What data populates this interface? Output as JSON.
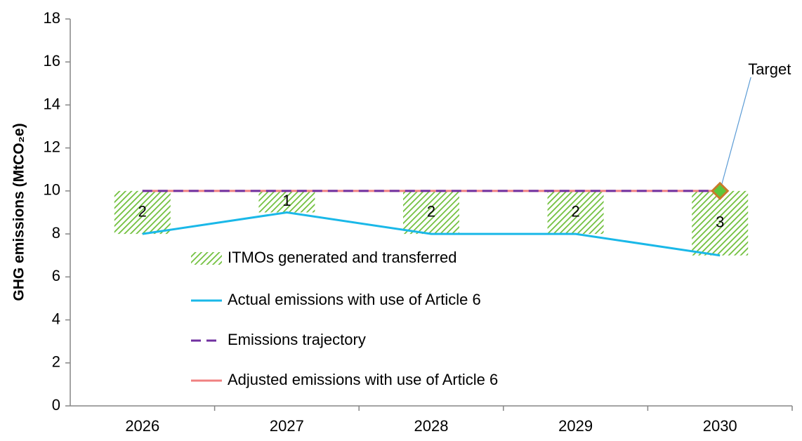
{
  "chart_data": {
    "type": "combo",
    "y_label": "GHG emissions (MtCO₂e)",
    "categories": [
      "2026",
      "2027",
      "2028",
      "2029",
      "2030"
    ],
    "ylim": [
      0,
      18
    ],
    "yticks": [
      0,
      2,
      4,
      6,
      8,
      10,
      12,
      14,
      16,
      18
    ],
    "series": [
      {
        "name": "ITMOs generated and transferred",
        "type": "bar",
        "color": "#6fbf3a",
        "values": [
          2,
          1,
          2,
          2,
          3
        ]
      },
      {
        "name": "Actual emissions with use of Article 6",
        "type": "line",
        "color": "#1ab8e8",
        "values": [
          8,
          9,
          8,
          8,
          7
        ]
      },
      {
        "name": "Emissions trajectory",
        "type": "dashed-line",
        "color": "#7030a0",
        "values": [
          10,
          10,
          10,
          10,
          10
        ]
      },
      {
        "name": "Adjusted emissions with use of Article 6",
        "type": "line",
        "color": "#f08080",
        "values": [
          10,
          10,
          10,
          10,
          10
        ]
      }
    ],
    "annotation": {
      "text": "Target",
      "category": "2030",
      "value": 10
    }
  }
}
